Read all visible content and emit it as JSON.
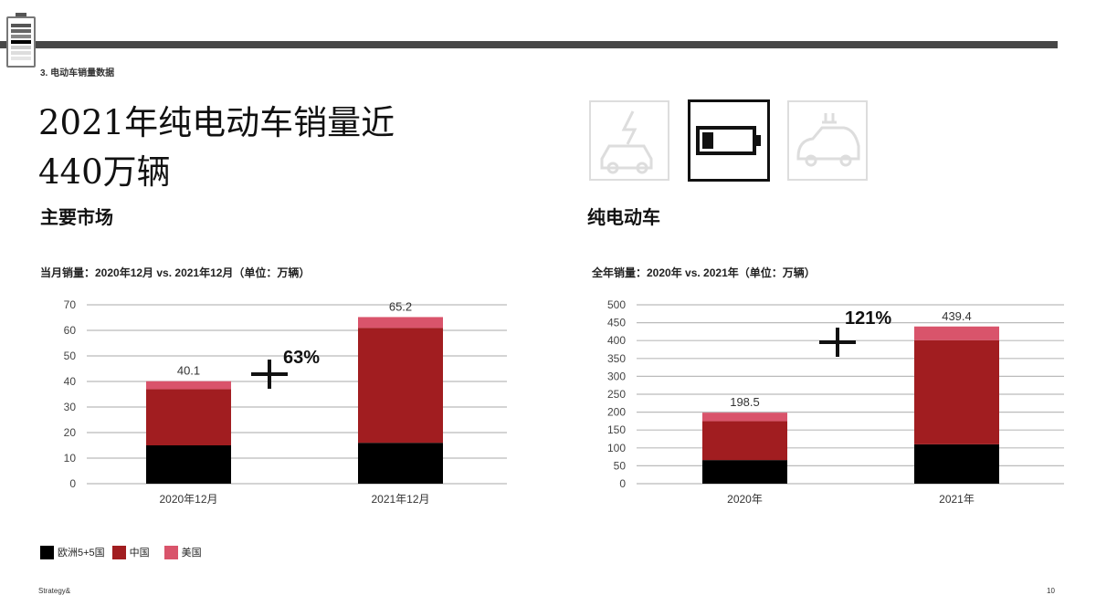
{
  "header": {
    "section": "3. 电动车销量数据",
    "title_line1": "2021年纯电动车销量近",
    "title_line2": "440万辆"
  },
  "left": {
    "heading": "主要市场",
    "subtitle": "当月销量：2020年12月 vs. 2021年12月（单位：万辆）"
  },
  "right": {
    "heading": "纯电动车",
    "subtitle": "全年销量：2020年 vs. 2021年（单位：万辆）"
  },
  "icons": [
    "charging-car-icon",
    "battery-icon",
    "plug-car-icon"
  ],
  "legend": [
    {
      "label": "欧洲5+5国",
      "color": "#000000"
    },
    {
      "label": "中国",
      "color": "#a11d20"
    },
    {
      "label": "美国",
      "color": "#d9546b"
    }
  ],
  "footer": {
    "brand": "Strategy&",
    "page": "10"
  },
  "chart_data": [
    {
      "type": "bar",
      "stacked": true,
      "categories": [
        "2020年12月",
        "2021年12月"
      ],
      "ylim": [
        0,
        70
      ],
      "yticks": [
        0,
        10,
        20,
        30,
        40,
        50,
        60,
        70
      ],
      "grid": true,
      "series": [
        {
          "name": "欧洲5+5国",
          "values": [
            15,
            16
          ]
        },
        {
          "name": "中国",
          "values": [
            22,
            45
          ]
        },
        {
          "name": "美国",
          "values": [
            3.1,
            4.2
          ]
        }
      ],
      "totals": [
        "40.1",
        "65.2"
      ],
      "annotation": "63%"
    },
    {
      "type": "bar",
      "stacked": true,
      "categories": [
        "2020年",
        "2021年"
      ],
      "ylim": [
        0,
        500
      ],
      "yticks": [
        0,
        50,
        100,
        150,
        200,
        250,
        300,
        350,
        400,
        450,
        500
      ],
      "grid": true,
      "series": [
        {
          "name": "欧洲5+5国",
          "values": [
            66,
            110
          ]
        },
        {
          "name": "中国",
          "values": [
            109,
            291
          ]
        },
        {
          "name": "美国",
          "values": [
            23.5,
            38.4
          ]
        }
      ],
      "totals": [
        "198.5",
        "439.4"
      ],
      "annotation": "121%"
    }
  ]
}
